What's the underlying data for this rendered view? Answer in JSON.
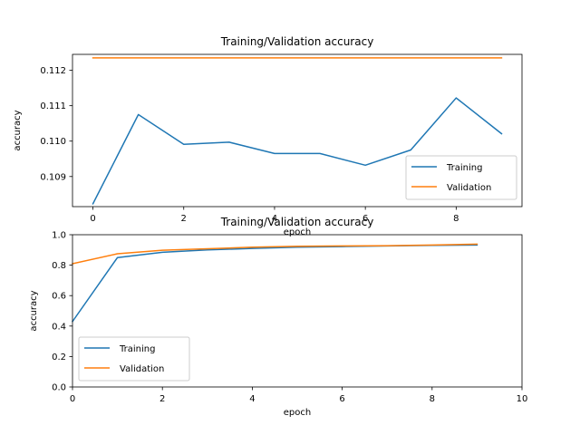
{
  "colors": {
    "training": "#1f77b4",
    "validation": "#ff7f0e",
    "frame": "#000000",
    "legend_border": "#cccccc"
  },
  "chart_data": [
    {
      "type": "line",
      "title": "Training/Validation accuracy",
      "xlabel": "epoch",
      "ylabel": "accuracy",
      "xlim": [
        -0.45,
        9.45
      ],
      "ylim": [
        0.10815,
        0.11245
      ],
      "xticks": [
        0,
        2,
        4,
        6,
        8
      ],
      "yticks": [
        0.109,
        0.11,
        0.111,
        0.112
      ],
      "ytick_labels": [
        "0.109",
        "0.110",
        "0.111",
        "0.112"
      ],
      "grid": false,
      "legend": "lower-right",
      "series": [
        {
          "name": "Training",
          "x": [
            0,
            1,
            2,
            3,
            4,
            5,
            6,
            7,
            8,
            9
          ],
          "y": [
            0.10823,
            0.11075,
            0.10991,
            0.10997,
            0.10965,
            0.10965,
            0.10932,
            0.10975,
            0.11122,
            0.11021
          ]
        },
        {
          "name": "Validation",
          "x": [
            0,
            1,
            2,
            3,
            4,
            5,
            6,
            7,
            8,
            9
          ],
          "y": [
            0.11235,
            0.11235,
            0.11235,
            0.11235,
            0.11235,
            0.11235,
            0.11235,
            0.11235,
            0.11235,
            0.11235
          ]
        }
      ]
    },
    {
      "type": "line",
      "title": "Training/Validation accuracy",
      "xlabel": "epoch",
      "ylabel": "accuracy",
      "xlim": [
        0,
        10
      ],
      "ylim": [
        0,
        1.0
      ],
      "xticks": [
        0,
        2,
        4,
        6,
        8,
        10
      ],
      "yticks": [
        0.0,
        0.2,
        0.4,
        0.6,
        0.8,
        1.0
      ],
      "ytick_labels": [
        "0.0",
        "0.2",
        "0.4",
        "0.6",
        "0.8",
        "1.0"
      ],
      "grid": false,
      "legend": "lower-left",
      "series": [
        {
          "name": "Training",
          "x": [
            0,
            1,
            2,
            3,
            4,
            5,
            6,
            7,
            8,
            9
          ],
          "y": [
            0.43,
            0.85,
            0.885,
            0.9,
            0.91,
            0.918,
            0.922,
            0.926,
            0.93,
            0.932
          ]
        },
        {
          "name": "Validation",
          "x": [
            0,
            1,
            2,
            3,
            4,
            5,
            6,
            7,
            8,
            9
          ],
          "y": [
            0.81,
            0.875,
            0.898,
            0.908,
            0.918,
            0.924,
            0.926,
            0.928,
            0.932,
            0.938
          ]
        }
      ]
    }
  ]
}
